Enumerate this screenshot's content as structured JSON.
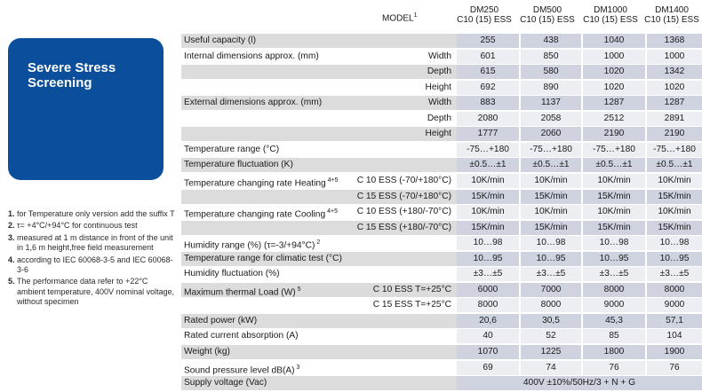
{
  "brand": {
    "title_line1": "Severe Stress",
    "title_line2": "Screening"
  },
  "header": {
    "model_label": "MODEL",
    "model_sup": "1",
    "models": [
      {
        "name": "DM250",
        "sub": "C10 (15) ESS"
      },
      {
        "name": "DM500",
        "sub": "C10 (15) ESS"
      },
      {
        "name": "DM1000",
        "sub": "C10 (15) ESS"
      },
      {
        "name": "DM1400",
        "sub": "C10 (15) ESS"
      }
    ]
  },
  "notes": [
    {
      "num": "1.",
      "text": "for Temperature only version add the suffix T"
    },
    {
      "num": "2.",
      "text": "τ= +4°C/+94°C for continuous test"
    },
    {
      "num": "3.",
      "text": "measured at 1 m distance in front of the unit in 1,6 m height,free field measurement"
    },
    {
      "num": "4.",
      "text": "according to IEC 60068-3-5 and IEC 60068-3-6"
    },
    {
      "num": "5.",
      "text": "The performance data refer to +22°C ambient temperature, 400V nominal voltage, without specimen"
    }
  ],
  "rows": [
    {
      "label": "Useful capacity (l)",
      "sup": "",
      "sub": "",
      "vals": [
        "255",
        "438",
        "1040",
        "1368"
      ],
      "alt": true
    },
    {
      "label": "Internal dimensions approx. (mm)",
      "sup": "",
      "sub": "Width",
      "vals": [
        "601",
        "850",
        "1000",
        "1000"
      ],
      "alt": false
    },
    {
      "label": "",
      "sup": "",
      "sub": "Depth",
      "vals": [
        "615",
        "580",
        "1020",
        "1342"
      ],
      "alt": true
    },
    {
      "label": "",
      "sup": "",
      "sub": "Height",
      "vals": [
        "692",
        "890",
        "1020",
        "1020"
      ],
      "alt": false
    },
    {
      "label": "External dimensions approx. (mm)",
      "sup": "",
      "sub": "Width",
      "vals": [
        "883",
        "1137",
        "1287",
        "1287"
      ],
      "alt": true
    },
    {
      "label": "",
      "sup": "",
      "sub": "Depth",
      "vals": [
        "2080",
        "2058",
        "2512",
        "2891"
      ],
      "alt": false
    },
    {
      "label": "",
      "sup": "",
      "sub": "Height",
      "vals": [
        "1777",
        "2060",
        "2190",
        "2190"
      ],
      "alt": true
    },
    {
      "label": "Temperature range (°C)",
      "sup": "",
      "sub": "",
      "vals": [
        "-75…+180",
        "-75…+180",
        "-75…+180",
        "-75…+180"
      ],
      "alt": false
    },
    {
      "label": "Temperature fluctuation (K)",
      "sup": "",
      "sub": "",
      "vals": [
        "±0.5…±1",
        "±0.5…±1",
        "±0.5…±1",
        "±0.5…±1"
      ],
      "alt": true
    },
    {
      "label": "Temperature changing rate Heating",
      "sup": "4+5",
      "sub": "C 10 ESS (-70/+180°C)",
      "vals": [
        "10K/min",
        "10K/min",
        "10K/min",
        "10K/min"
      ],
      "alt": false
    },
    {
      "label": "",
      "sup": "",
      "sub": "C 15 ESS (-70/+180°C)",
      "vals": [
        "15K/min",
        "15K/min",
        "15K/min",
        "15K/min"
      ],
      "alt": true
    },
    {
      "label": "Temperature changing rate Cooling",
      "sup": "4+5",
      "sub": "C 10 ESS (+180/-70°C)",
      "vals": [
        "10K/min",
        "10K/min",
        "10K/min",
        "10K/min"
      ],
      "alt": false
    },
    {
      "label": "",
      "sup": "",
      "sub": "C 15 ESS (+180/-70°C)",
      "vals": [
        "15K/min",
        "15K/min",
        "15K/min",
        "15K/min"
      ],
      "alt": true
    },
    {
      "label": "Humidity range (%) (τ=-3/+94°C)",
      "sup": "2",
      "sub": "",
      "vals": [
        "10…98",
        "10…98",
        "10…98",
        "10…98"
      ],
      "alt": false
    },
    {
      "label": "Temperature range for climatic test (°C)",
      "sup": "",
      "sub": "",
      "vals": [
        "10…95",
        "10…95",
        "10…95",
        "10…95"
      ],
      "alt": true
    },
    {
      "label": "Humidity fluctuation (%)",
      "sup": "",
      "sub": "",
      "vals": [
        "±3…±5",
        "±3…±5",
        "±3…±5",
        "±3…±5"
      ],
      "alt": false
    },
    {
      "label": "Maximum thermal Load (W)",
      "sup": "5",
      "sub": "C 10 ESS T=+25°C",
      "vals": [
        "6000",
        "7000",
        "8000",
        "8000"
      ],
      "alt": true
    },
    {
      "label": "",
      "sup": "",
      "sub": "C 15 ESS T=+25°C",
      "vals": [
        "8000",
        "8000",
        "9000",
        "9000"
      ],
      "alt": false
    },
    {
      "label": "Rated power (kW)",
      "sup": "",
      "sub": "",
      "vals": [
        "20,6",
        "30,5",
        "45,3",
        "57,1"
      ],
      "alt": true
    },
    {
      "label": "Rated current absorption (A)",
      "sup": "",
      "sub": "",
      "vals": [
        "40",
        "52",
        "85",
        "104"
      ],
      "alt": false
    },
    {
      "label": "Weight (kg)",
      "sup": "",
      "sub": "",
      "vals": [
        "1070",
        "1225",
        "1800",
        "1900"
      ],
      "alt": true
    },
    {
      "label": "Sound pressure level dB(A)",
      "sup": "3",
      "sub": "",
      "vals": [
        "69",
        "74",
        "76",
        "76"
      ],
      "alt": false
    },
    {
      "label": "Supply voltage (Vac)",
      "sup": "",
      "sub": "",
      "span": "400V ±10%/50Hz/3 + N + G",
      "alt": true
    }
  ]
}
